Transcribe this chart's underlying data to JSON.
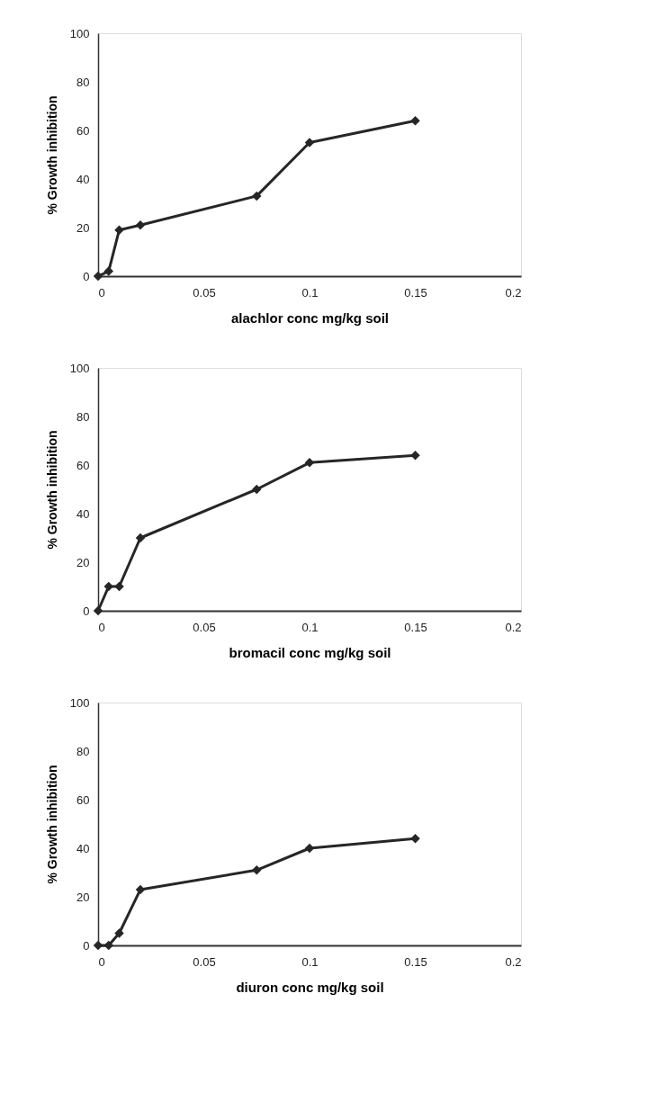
{
  "chart_data": [
    {
      "type": "line",
      "xlabel": "alachlor conc mg/kg soil",
      "ylabel": "% Growth inhibition",
      "x": [
        0,
        0.005,
        0.01,
        0.02,
        0.075,
        0.1,
        0.15
      ],
      "series": [
        {
          "color": "#262626",
          "values": [
            0,
            2,
            19,
            21,
            33,
            55,
            64
          ]
        }
      ],
      "xlim": [
        0,
        0.2
      ],
      "xticks": [
        0,
        0.05,
        0.1,
        0.15,
        0.2
      ],
      "ylim": [
        0,
        100
      ],
      "yticks": [
        0,
        20,
        40,
        60,
        80,
        100
      ],
      "grid": false,
      "marker": "diamond",
      "line_style": "solid"
    },
    {
      "type": "line",
      "xlabel": "bromacil conc mg/kg soil",
      "ylabel": "% Growth inhibition",
      "x": [
        0,
        0.005,
        0.01,
        0.02,
        0.075,
        0.1,
        0.15
      ],
      "series": [
        {
          "color": "#262626",
          "values": [
            0,
            10,
            10,
            30,
            50,
            61,
            64
          ]
        }
      ],
      "xlim": [
        0,
        0.2
      ],
      "xticks": [
        0,
        0.05,
        0.1,
        0.15,
        0.2
      ],
      "ylim": [
        0,
        100
      ],
      "yticks": [
        0,
        20,
        40,
        60,
        80,
        100
      ],
      "grid": false,
      "marker": "diamond",
      "line_style": "solid"
    },
    {
      "type": "line",
      "xlabel": "diuron conc mg/kg soil",
      "ylabel": "% Growth inhibition",
      "x": [
        0,
        0.005,
        0.01,
        0.02,
        0.075,
        0.1,
        0.15
      ],
      "series": [
        {
          "color": "#262626",
          "values": [
            0,
            0,
            5,
            23,
            31,
            40,
            44
          ]
        }
      ],
      "xlim": [
        0,
        0.2
      ],
      "xticks": [
        0,
        0.05,
        0.1,
        0.15,
        0.2
      ],
      "ylim": [
        0,
        100
      ],
      "yticks": [
        0,
        20,
        40,
        60,
        80,
        100
      ],
      "grid": false,
      "marker": "diamond",
      "line_style": "solid"
    }
  ]
}
